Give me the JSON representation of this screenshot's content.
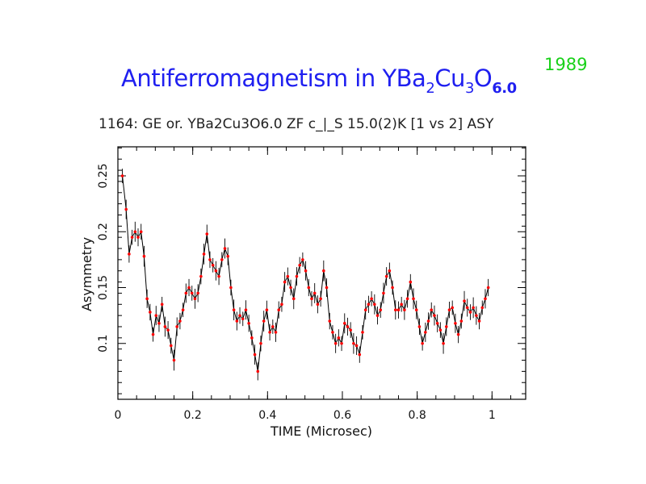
{
  "slide": {
    "title_text": "Antiferromagnetism in YBa",
    "title_sub1": "2",
    "title_mid1": "Cu",
    "title_sub2": "3",
    "title_mid2": "O",
    "title_sub3": "6.0",
    "year": "1989",
    "title_color": "#1f1ff0",
    "year_color": "#19d119"
  },
  "chart_data": {
    "type": "scatter",
    "title": "1164: GE or. YBa2Cu3O6.0 ZF c_|_S 15.0(2)K  [1 vs 2] ASY",
    "xlabel": "TIME (Microsec)",
    "ylabel": "Asymmetry",
    "xlim": [
      0,
      1.09
    ],
    "ylim": [
      0.05,
      0.276
    ],
    "xticks": [
      0,
      0.2,
      0.4,
      0.6,
      0.8,
      1
    ],
    "xtick_labels": [
      "0",
      "0.2",
      "0.4",
      "0.6",
      "0.8",
      "1"
    ],
    "yticks": [
      0.1,
      0.15,
      0.2,
      0.25
    ],
    "ytick_labels": [
      "0.1",
      "0.15",
      "0.2",
      "0.25"
    ],
    "grid": false,
    "marker_color": "#ff0000",
    "line_color": "#000000",
    "error_bar": 0.008,
    "x": [
      0.012,
      0.022,
      0.03,
      0.038,
      0.046,
      0.054,
      0.062,
      0.07,
      0.078,
      0.086,
      0.094,
      0.102,
      0.11,
      0.118,
      0.126,
      0.134,
      0.142,
      0.15,
      0.158,
      0.166,
      0.174,
      0.182,
      0.19,
      0.198,
      0.206,
      0.214,
      0.222,
      0.23,
      0.238,
      0.246,
      0.254,
      0.262,
      0.27,
      0.278,
      0.286,
      0.294,
      0.302,
      0.31,
      0.318,
      0.326,
      0.334,
      0.342,
      0.35,
      0.358,
      0.366,
      0.374,
      0.382,
      0.39,
      0.398,
      0.406,
      0.414,
      0.422,
      0.43,
      0.438,
      0.446,
      0.454,
      0.462,
      0.47,
      0.478,
      0.486,
      0.494,
      0.502,
      0.51,
      0.518,
      0.526,
      0.534,
      0.542,
      0.55,
      0.558,
      0.566,
      0.574,
      0.582,
      0.59,
      0.598,
      0.606,
      0.614,
      0.622,
      0.63,
      0.638,
      0.646,
      0.654,
      0.662,
      0.67,
      0.678,
      0.686,
      0.694,
      0.702,
      0.71,
      0.718,
      0.726,
      0.734,
      0.742,
      0.75,
      0.758,
      0.766,
      0.774,
      0.782,
      0.79,
      0.798,
      0.806,
      0.814,
      0.822,
      0.83,
      0.838,
      0.846,
      0.854,
      0.862,
      0.87,
      0.878,
      0.886,
      0.894,
      0.902,
      0.91,
      0.918,
      0.926,
      0.934,
      0.942,
      0.95,
      0.958,
      0.966,
      0.974,
      0.982,
      0.99
    ],
    "y": [
      0.25,
      0.22,
      0.18,
      0.195,
      0.2,
      0.195,
      0.2,
      0.178,
      0.14,
      0.128,
      0.108,
      0.125,
      0.118,
      0.135,
      0.115,
      0.112,
      0.098,
      0.085,
      0.115,
      0.12,
      0.13,
      0.145,
      0.15,
      0.145,
      0.14,
      0.145,
      0.16,
      0.18,
      0.198,
      0.175,
      0.17,
      0.165,
      0.16,
      0.175,
      0.185,
      0.178,
      0.15,
      0.13,
      0.12,
      0.125,
      0.122,
      0.13,
      0.118,
      0.105,
      0.09,
      0.075,
      0.1,
      0.12,
      0.13,
      0.11,
      0.115,
      0.11,
      0.13,
      0.135,
      0.155,
      0.16,
      0.15,
      0.14,
      0.16,
      0.17,
      0.175,
      0.165,
      0.15,
      0.14,
      0.145,
      0.135,
      0.14,
      0.165,
      0.15,
      0.12,
      0.11,
      0.1,
      0.105,
      0.1,
      0.118,
      0.115,
      0.112,
      0.1,
      0.098,
      0.09,
      0.11,
      0.13,
      0.135,
      0.14,
      0.135,
      0.125,
      0.13,
      0.145,
      0.16,
      0.165,
      0.15,
      0.13,
      0.13,
      0.135,
      0.13,
      0.14,
      0.155,
      0.14,
      0.13,
      0.115,
      0.1,
      0.11,
      0.12,
      0.13,
      0.125,
      0.118,
      0.112,
      0.1,
      0.115,
      0.13,
      0.132,
      0.118,
      0.108,
      0.12,
      0.138,
      0.132,
      0.128,
      0.132,
      0.125,
      0.12,
      0.132,
      0.14,
      0.15
    ]
  }
}
